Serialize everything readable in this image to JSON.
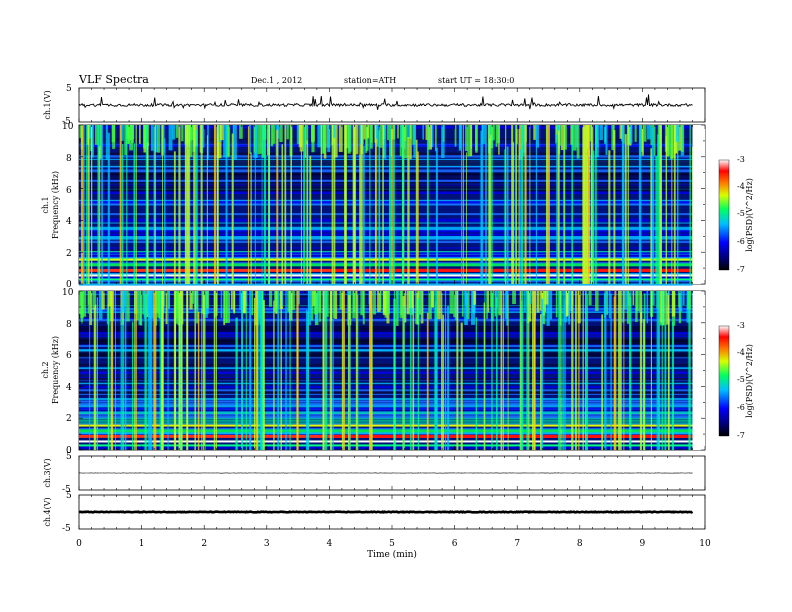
{
  "header": {
    "title": "VLF Spectra",
    "date": "Dec.1 , 2012",
    "station": "station=ATH",
    "start_time": "start UT =  18:30:0"
  },
  "chart_data": [
    {
      "type": "line",
      "name": "ch1-waveform",
      "ylabel": "ch.1(V)",
      "yticks": [
        "5",
        "-5"
      ],
      "ylim": [
        -5,
        5
      ],
      "xlim": [
        0,
        10
      ],
      "level": 0.0
    },
    {
      "type": "heatmap",
      "name": "ch1-spectrogram",
      "ylabel_channel": "ch.1",
      "ylabel": "Frequency (kHz)",
      "yticks": [
        "10",
        "8",
        "6",
        "4",
        "2",
        "0"
      ],
      "ylim": [
        0,
        10
      ],
      "xlim": [
        0,
        9.8
      ],
      "colorbar": {
        "label": "log(PSD)(V^2/Hz)",
        "ticks": [
          "-3",
          "-4",
          "-5",
          "-6",
          "-7"
        ],
        "range": [
          -7,
          -3
        ]
      }
    },
    {
      "type": "heatmap",
      "name": "ch2-spectrogram",
      "ylabel_channel": "ch.2",
      "ylabel": "Frequency (kHz)",
      "yticks": [
        "10",
        "8",
        "6",
        "4",
        "2",
        "0"
      ],
      "ylim": [
        0,
        10
      ],
      "xlim": [
        0,
        9.8
      ],
      "colorbar": {
        "label": "log(PSD)(V^2/Hz)",
        "ticks": [
          "-3",
          "-4",
          "-5",
          "-6",
          "-7"
        ],
        "range": [
          -7,
          -3
        ]
      }
    },
    {
      "type": "line",
      "name": "ch3-waveform",
      "ylabel": "ch.3(V)",
      "yticks": [
        "5",
        "-5"
      ],
      "ylim": [
        -5,
        5
      ],
      "xlim": [
        0,
        10
      ],
      "level": 0.0
    },
    {
      "type": "line",
      "name": "ch4-waveform",
      "ylabel": "ch.4(V)",
      "yticks": [
        "5",
        "-5"
      ],
      "ylim": [
        -5,
        5
      ],
      "xlim": [
        0,
        10
      ],
      "level": 0.0
    }
  ],
  "xaxis": {
    "label": "Time (min)",
    "ticks": [
      "0",
      "1",
      "2",
      "3",
      "4",
      "5",
      "6",
      "7",
      "8",
      "9",
      "10"
    ]
  }
}
